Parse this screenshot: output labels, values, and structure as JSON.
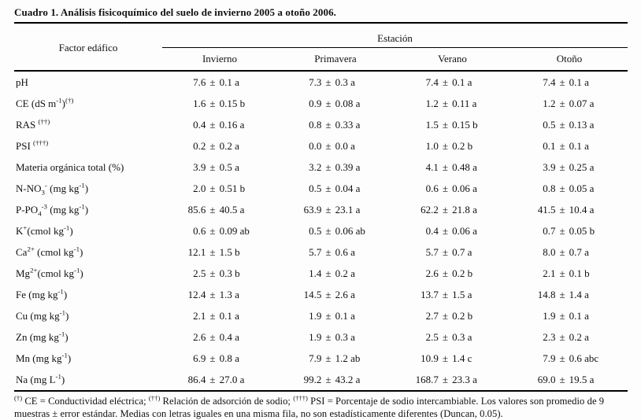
{
  "page": {
    "title": "Cuadro 1. Análisis fisicoquímico del suelo de invierno 2005 a otoño 2006.",
    "footnote_html": "<sup>(†)</sup> CE = Conductividad eléctrica; <sup>(††)</sup> Relación de adsorción de sodio; <sup>(†††)</sup> PSI = Porcentaje de sodio intercambiable. Los valores son promedio de 9 muestras ± error estándar. Medias con letras iguales en una misma fila, no son estadísticamente diferentes (Duncan, 0.05)."
  },
  "table": {
    "factor_header": "Factor edáfico",
    "group_header": "Estación",
    "season_headers": [
      "Invierno",
      "Primavera",
      "Verano",
      "Otoño"
    ],
    "rows": [
      {
        "factor_html": "pH",
        "values": [
          "7.6 ± 0.1 a",
          "7.3 ± 0.3 a",
          "7.4 ± 0.1 a",
          "7.4 ± 0.1 a"
        ]
      },
      {
        "factor_html": "CE (dS m<sup>-1</sup>)<sup>(†)</sup>",
        "values": [
          "1.6 ± 0.15 b",
          "0.9 ± 0.08 a",
          "1.2 ± 0.11 a",
          "1.2 ± 0.07 a"
        ]
      },
      {
        "factor_html": "RAS <sup>(††)</sup>",
        "values": [
          "0.4 ± 0.16 a",
          "0.8 ± 0.33 a",
          "1.5 ± 0.15 b",
          "0.5 ± 0.13 a"
        ]
      },
      {
        "factor_html": "PSI <sup>(†††)</sup>",
        "values": [
          "0.2 ± 0.2 a",
          "0.0 ± 0.0 a",
          "1.0 ± 0.2 b",
          "0.1 ± 0.1 a"
        ]
      },
      {
        "factor_html": "Materia orgánica total (%)",
        "values": [
          "3.9 ± 0.5 a",
          "3.2 ± 0.39 a",
          "4.1 ± 0.48 a",
          "3.9 ± 0.25 a"
        ]
      },
      {
        "factor_html": "N-NO<sub>3</sub><sup>-</sup> (mg kg<sup>-1</sup>)",
        "values": [
          "2.0 ± 0.51 b",
          "0.5 ± 0.04 a",
          "0.6 ± 0.06 a",
          "0.8 ± 0.05 a"
        ]
      },
      {
        "factor_html": "P-PO<sub>4</sub><sup>-3</sup> (mg kg<sup>-1</sup>)",
        "values": [
          "85.6 ± 40.5 a",
          "63.9 ± 23.1 a",
          "62.2 ± 21.8 a",
          "41.5 ± 10.4 a"
        ]
      },
      {
        "factor_html": "K<sup>+</sup>(cmol kg<sup>-1</sup>)",
        "values": [
          "0.6 ± 0.09 ab",
          "0.5 ± 0.06 ab",
          "0.4 ± 0.06 a",
          "0.7 ± 0.05 b"
        ]
      },
      {
        "factor_html": "Ca<sup>2+</sup> (cmol kg<sup>-1</sup>)",
        "values": [
          "12.1 ± 1.5 b",
          "5.7 ± 0.6 a",
          "5.7 ± 0.7 a",
          "8.0 ± 0.7 a"
        ]
      },
      {
        "factor_html": "Mg<sup>2+</sup>(cmol kg<sup>-1</sup>)",
        "values": [
          "2.5 ± 0.3 b",
          "1.4 ± 0.2 a",
          "2.6 ± 0.2 b",
          "2.1 ± 0.1 b"
        ]
      },
      {
        "factor_html": "Fe (mg kg<sup>-1</sup>)",
        "values": [
          "12.4 ± 1.3 a",
          "14.5 ± 2.6 a",
          "13.7 ± 1.5 a",
          "14.8 ± 1.4 a"
        ]
      },
      {
        "factor_html": "Cu (mg kg<sup>-1</sup>)",
        "values": [
          "2.1 ± 0.1 a",
          "1.9 ± 0.1 a",
          "2.7 ± 0.2 b",
          "1.9 ± 0.1 a"
        ]
      },
      {
        "factor_html": "Zn (mg kg<sup>-1</sup>)",
        "values": [
          "2.6 ± 0.4 a",
          "1.9 ± 0.3 a",
          "2.5 ± 0.3 a",
          "2.3 ± 0.2 a"
        ]
      },
      {
        "factor_html": "Mn (mg kg<sup>-1</sup>)",
        "values": [
          "6.9 ± 0.8 a",
          "7.9 ± 1.2 ab",
          "10.9 ± 1.4 c",
          "7.9 ± 0.6 abc"
        ]
      },
      {
        "factor_html": "Na (mg L<sup>-1</sup>)",
        "values": [
          "86.4 ± 27.0 a",
          "99.2 ± 43.2 a",
          "168.7 ± 23.3 a",
          "69.0 ± 19.5 a"
        ]
      }
    ]
  }
}
